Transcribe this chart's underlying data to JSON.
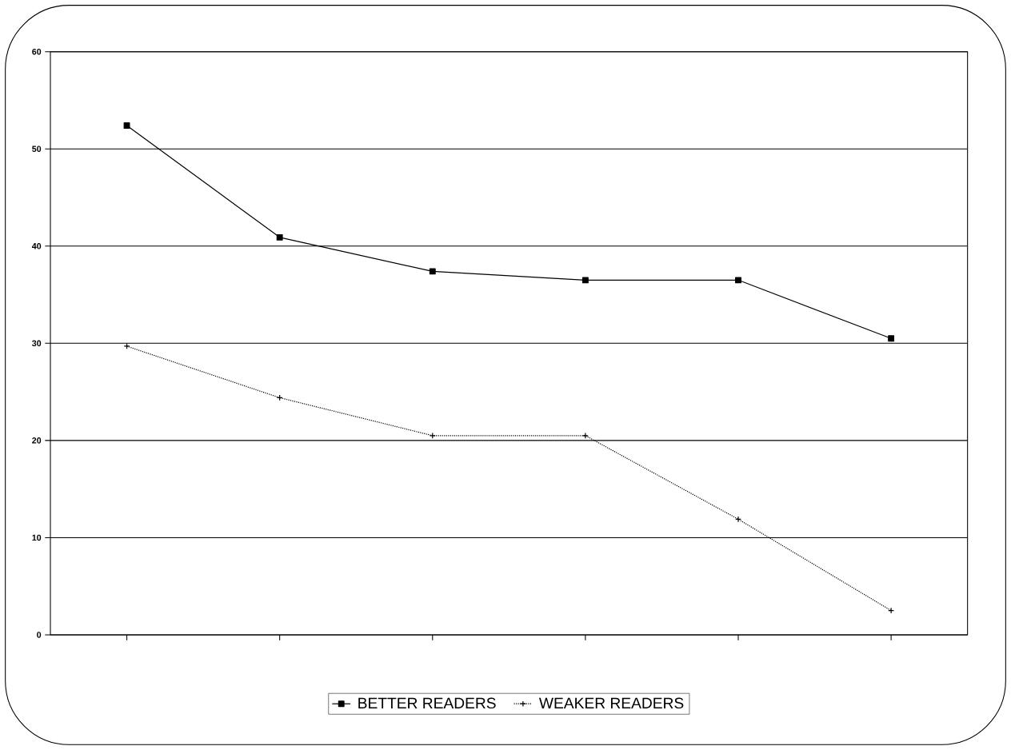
{
  "chart_data": {
    "type": "line",
    "categories": [
      null,
      null,
      null,
      null,
      null,
      null
    ],
    "series": [
      {
        "name": "BETTER READERS",
        "color": "#000000",
        "marker": "square",
        "line_style": "solid",
        "values": [
          52.4,
          40.9,
          37.4,
          36.5,
          36.5,
          30.5
        ]
      },
      {
        "name": "WEAKER READERS",
        "color": "#000000",
        "marker": "cross",
        "line_style": "dotted",
        "values": [
          29.7,
          24.4,
          20.5,
          20.5,
          11.9,
          2.5
        ]
      }
    ],
    "ylim": [
      0,
      60
    ],
    "yticks": [
      0,
      10,
      20,
      30,
      40,
      50,
      60
    ],
    "grid": "y",
    "legend": "bottom",
    "tick_labels": "y"
  }
}
